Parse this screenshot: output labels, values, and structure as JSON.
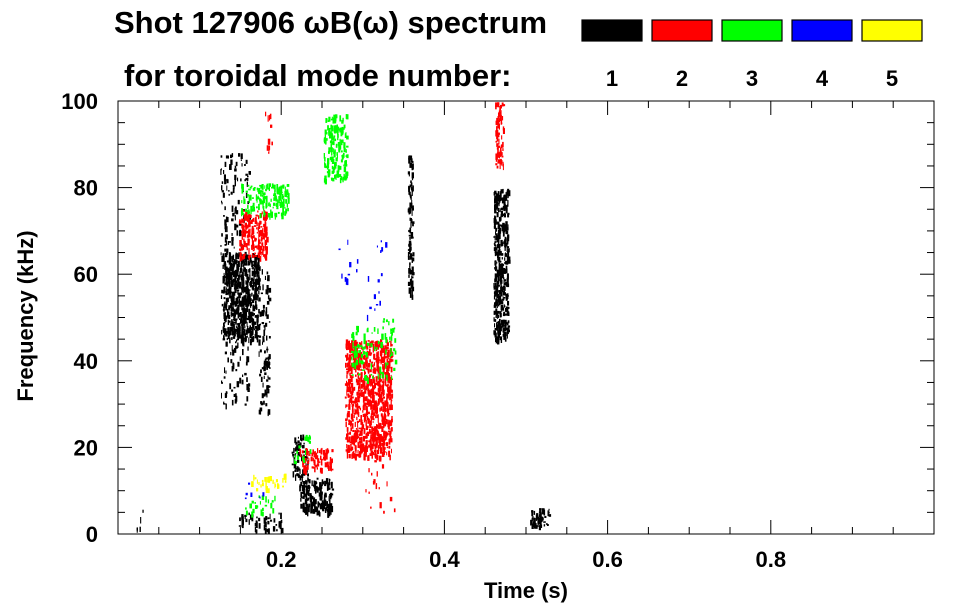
{
  "chart_data": {
    "type": "scatter",
    "title": "Shot 127906 ωB(ω) spectrum",
    "subtitle": "for toroidal mode number:",
    "xlabel": "Time (s)",
    "ylabel": "Frequency (kHz)",
    "xlim": [
      0.0,
      1.0
    ],
    "ylim": [
      0,
      100
    ],
    "x_ticks": [
      0.2,
      0.4,
      0.6,
      0.8
    ],
    "x_tick_labels": [
      "0.2",
      "0.4",
      "0.6",
      "0.8"
    ],
    "y_ticks": [
      0,
      20,
      40,
      60,
      80,
      100
    ],
    "y_tick_labels": [
      "0",
      "20",
      "40",
      "60",
      "80",
      "100"
    ],
    "legend": [
      {
        "label": "1",
        "color": "#000000"
      },
      {
        "label": "2",
        "color": "#ff0000"
      },
      {
        "label": "3",
        "color": "#00ff00"
      },
      {
        "label": "4",
        "color": "#0000ff"
      },
      {
        "label": "5",
        "color": "#ffff00"
      }
    ],
    "series": [
      {
        "name": "1",
        "color": "#000000",
        "regions": [
          {
            "t0": 0.128,
            "t1": 0.172,
            "f0": 45,
            "f1": 65,
            "density": 0.55
          },
          {
            "t0": 0.125,
            "t1": 0.16,
            "f0": 30,
            "f1": 88,
            "density": 0.1
          },
          {
            "t0": 0.172,
            "t1": 0.185,
            "f0": 28,
            "f1": 62,
            "density": 0.18
          },
          {
            "t0": 0.222,
            "t1": 0.262,
            "f0": 5,
            "f1": 13,
            "density": 0.5
          },
          {
            "t0": 0.212,
            "t1": 0.232,
            "f0": 13,
            "f1": 23,
            "density": 0.25
          },
          {
            "t0": 0.355,
            "t1": 0.361,
            "f0": 55,
            "f1": 88,
            "density": 0.45
          },
          {
            "t0": 0.46,
            "t1": 0.478,
            "f0": 45,
            "f1": 80,
            "density": 0.55
          },
          {
            "t0": 0.505,
            "t1": 0.528,
            "f0": 2,
            "f1": 6,
            "density": 0.45
          },
          {
            "t0": 0.148,
            "t1": 0.2,
            "f0": 1,
            "f1": 5,
            "density": 0.2
          },
          {
            "t0": 0.02,
            "t1": 0.03,
            "f0": 1,
            "f1": 6,
            "density": 0.08
          }
        ]
      },
      {
        "name": "2",
        "color": "#ff0000",
        "regions": [
          {
            "t0": 0.278,
            "t1": 0.335,
            "f0": 18,
            "f1": 45,
            "density": 0.5
          },
          {
            "t0": 0.148,
            "t1": 0.182,
            "f0": 64,
            "f1": 75,
            "density": 0.45
          },
          {
            "t0": 0.222,
            "t1": 0.262,
            "f0": 15,
            "f1": 20,
            "density": 0.4
          },
          {
            "t0": 0.462,
            "t1": 0.472,
            "f0": 85,
            "f1": 100,
            "density": 0.45
          },
          {
            "t0": 0.18,
            "t1": 0.188,
            "f0": 88,
            "f1": 100,
            "density": 0.1
          },
          {
            "t0": 0.3,
            "t1": 0.34,
            "f0": 5,
            "f1": 20,
            "density": 0.03
          }
        ]
      },
      {
        "name": "3",
        "color": "#00ff00",
        "regions": [
          {
            "t0": 0.252,
            "t1": 0.28,
            "f0": 82,
            "f1": 97,
            "density": 0.35
          },
          {
            "t0": 0.15,
            "t1": 0.208,
            "f0": 74,
            "f1": 81,
            "density": 0.35
          },
          {
            "t0": 0.285,
            "t1": 0.34,
            "f0": 36,
            "f1": 50,
            "density": 0.1
          },
          {
            "t0": 0.215,
            "t1": 0.235,
            "f0": 16,
            "f1": 23,
            "density": 0.1
          },
          {
            "t0": 0.155,
            "t1": 0.195,
            "f0": 5,
            "f1": 9,
            "density": 0.12
          }
        ]
      },
      {
        "name": "4",
        "color": "#0000ff",
        "regions": [
          {
            "t0": 0.27,
            "t1": 0.33,
            "f0": 50,
            "f1": 68,
            "density": 0.02
          },
          {
            "t0": 0.155,
            "t1": 0.18,
            "f0": 7,
            "f1": 12,
            "density": 0.04
          }
        ]
      },
      {
        "name": "5",
        "color": "#ffff00",
        "regions": [
          {
            "t0": 0.162,
            "t1": 0.205,
            "f0": 10,
            "f1": 14,
            "density": 0.15
          }
        ]
      }
    ]
  }
}
